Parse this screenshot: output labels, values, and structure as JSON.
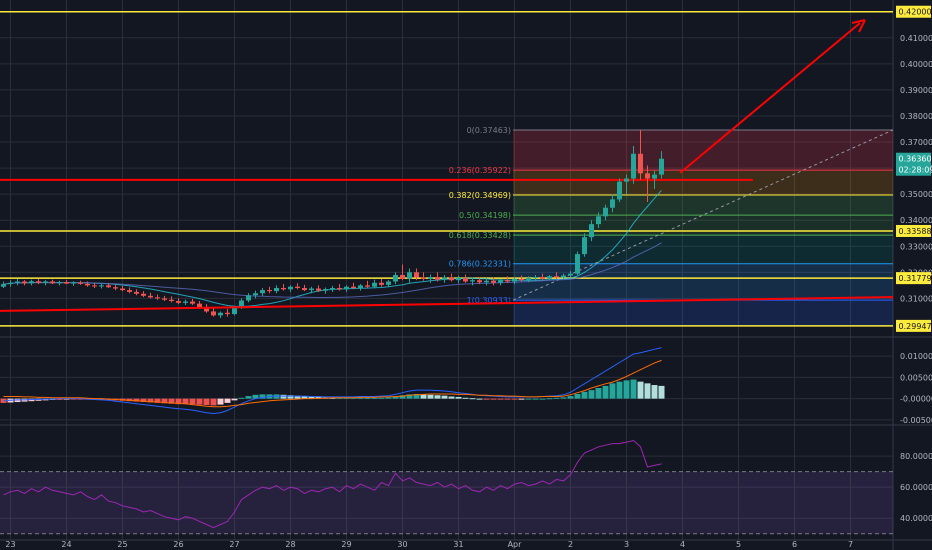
{
  "colors": {
    "background": "#131722",
    "grid": "#2a2e39",
    "up": "#26a69a",
    "down": "#ef5350",
    "yellow": "#ffeb3b",
    "red": "#ff0000",
    "macd_line": "#2962ff",
    "signal_line": "#ff6d00",
    "rsi": "#9c27b0"
  },
  "chart_data": [
    {
      "type": "candlestick",
      "price_axis": {
        "ticks": [
          "0.41000",
          "0.40000",
          "0.39000",
          "0.38000",
          "0.37000",
          "0.36000",
          "0.35000",
          "0.34000",
          "0.33000",
          "0.32000",
          "0.31000"
        ],
        "tick_values": [
          0.41,
          0.4,
          0.39,
          0.38,
          0.37,
          0.36,
          0.35,
          0.34,
          0.33,
          0.32,
          0.31
        ],
        "ylim": [
          0.2952,
          0.4245
        ],
        "current_price": "0.36360",
        "countdown": "02:28:09"
      },
      "time_axis": {
        "labels": [
          "23",
          "24",
          "25",
          "26",
          "27",
          "28",
          "29",
          "30",
          "31",
          "Apr",
          "2",
          "3",
          "4",
          "5",
          "6",
          "7"
        ],
        "label_slots": [
          1,
          9,
          17,
          25,
          33,
          41,
          49,
          57,
          65,
          73,
          81,
          89,
          97,
          105,
          113,
          121
        ],
        "slot_count": 126
      },
      "horizontal_levels": [
        {
          "price": 0.42,
          "label": "0.42000",
          "color": "yellow"
        },
        {
          "price": 0.33588,
          "label": "0.33588",
          "color": "yellow"
        },
        {
          "price": 0.31779,
          "label": "0.31779",
          "color": "yellow"
        },
        {
          "price": 0.29947,
          "label": "0.29947",
          "color": "yellow"
        },
        {
          "price": 0.3555,
          "label": "",
          "color": "red"
        }
      ],
      "fibonacci": [
        {
          "label": "0(0.37463)",
          "price": 0.37463,
          "color": "#787b86"
        },
        {
          "label": "0.236(0.35922)",
          "price": 0.35922,
          "color": "#f23645"
        },
        {
          "label": "0.382(0.34969)",
          "price": 0.34969,
          "color": "#ffeb3b"
        },
        {
          "label": "0.5(0.34198)",
          "price": 0.34198,
          "color": "#4caf50"
        },
        {
          "label": "0.618(0.33428)",
          "price": 0.33428,
          "color": "#4caf50"
        },
        {
          "label": "0.786(0.32331)",
          "price": 0.32331,
          "color": "#2196f3"
        },
        {
          "label": "1(0.30933)",
          "price": 0.30933,
          "color": "#2962ff"
        }
      ],
      "candles": [
        [
          0.3145,
          0.3165,
          0.314,
          0.3155
        ],
        [
          0.3155,
          0.317,
          0.3145,
          0.316
        ],
        [
          0.316,
          0.3175,
          0.315,
          0.3165
        ],
        [
          0.3165,
          0.317,
          0.315,
          0.3158
        ],
        [
          0.3158,
          0.3172,
          0.315,
          0.3166
        ],
        [
          0.3166,
          0.3175,
          0.3155,
          0.316
        ],
        [
          0.316,
          0.317,
          0.315,
          0.3165
        ],
        [
          0.3165,
          0.3172,
          0.3155,
          0.3158
        ],
        [
          0.3158,
          0.3168,
          0.315,
          0.3163
        ],
        [
          0.3163,
          0.317,
          0.3155,
          0.3157
        ],
        [
          0.3157,
          0.3166,
          0.3148,
          0.3161
        ],
        [
          0.3161,
          0.3168,
          0.3152,
          0.3156
        ],
        [
          0.3156,
          0.3165,
          0.3145,
          0.315
        ],
        [
          0.315,
          0.316,
          0.314,
          0.3146
        ],
        [
          0.3146,
          0.3156,
          0.3138,
          0.315
        ],
        [
          0.315,
          0.3158,
          0.314,
          0.3143
        ],
        [
          0.3143,
          0.3152,
          0.3132,
          0.3138
        ],
        [
          0.3138,
          0.3148,
          0.3128,
          0.3132
        ],
        [
          0.3132,
          0.3142,
          0.312,
          0.3125
        ],
        [
          0.3125,
          0.3135,
          0.3112,
          0.3118
        ],
        [
          0.3118,
          0.3128,
          0.3105,
          0.311
        ],
        [
          0.311,
          0.3122,
          0.31,
          0.3104
        ],
        [
          0.3104,
          0.3115,
          0.3095,
          0.31
        ],
        [
          0.31,
          0.311,
          0.309,
          0.3095
        ],
        [
          0.3095,
          0.3108,
          0.3085,
          0.309
        ],
        [
          0.309,
          0.31,
          0.3078,
          0.3083
        ],
        [
          0.3083,
          0.3095,
          0.3075,
          0.3088
        ],
        [
          0.3088,
          0.3098,
          0.3075,
          0.308
        ],
        [
          0.308,
          0.309,
          0.306,
          0.3065
        ],
        [
          0.3065,
          0.3078,
          0.3045,
          0.305
        ],
        [
          0.305,
          0.3062,
          0.303,
          0.3035
        ],
        [
          0.3035,
          0.305,
          0.3025,
          0.3045
        ],
        [
          0.3045,
          0.306,
          0.303,
          0.304
        ],
        [
          0.304,
          0.307,
          0.3035,
          0.3065
        ],
        [
          0.3065,
          0.31,
          0.306,
          0.3092
        ],
        [
          0.3092,
          0.312,
          0.3085,
          0.3112
        ],
        [
          0.3112,
          0.313,
          0.31,
          0.312
        ],
        [
          0.312,
          0.314,
          0.311,
          0.3132
        ],
        [
          0.3132,
          0.3145,
          0.312,
          0.3128
        ],
        [
          0.3128,
          0.315,
          0.312,
          0.314
        ],
        [
          0.314,
          0.3155,
          0.313,
          0.3135
        ],
        [
          0.3135,
          0.315,
          0.3125,
          0.3145
        ],
        [
          0.3145,
          0.3158,
          0.3135,
          0.314
        ],
        [
          0.314,
          0.3152,
          0.3128,
          0.3132
        ],
        [
          0.3132,
          0.3145,
          0.312,
          0.3138
        ],
        [
          0.3138,
          0.315,
          0.3125,
          0.313
        ],
        [
          0.313,
          0.3142,
          0.3118,
          0.3136
        ],
        [
          0.3136,
          0.3148,
          0.3125,
          0.314
        ],
        [
          0.314,
          0.3155,
          0.313,
          0.3135
        ],
        [
          0.3135,
          0.315,
          0.3125,
          0.3145
        ],
        [
          0.3145,
          0.316,
          0.3135,
          0.314
        ],
        [
          0.314,
          0.3155,
          0.313,
          0.315
        ],
        [
          0.315,
          0.3168,
          0.314,
          0.3145
        ],
        [
          0.3145,
          0.3172,
          0.3138,
          0.316
        ],
        [
          0.316,
          0.3175,
          0.3145,
          0.3152
        ],
        [
          0.3152,
          0.317,
          0.3145,
          0.3165
        ],
        [
          0.3165,
          0.32,
          0.3155,
          0.319
        ],
        [
          0.319,
          0.323,
          0.317,
          0.3175
        ],
        [
          0.3175,
          0.3215,
          0.316,
          0.32
        ],
        [
          0.32,
          0.3215,
          0.317,
          0.318
        ],
        [
          0.318,
          0.32,
          0.3168,
          0.3175
        ],
        [
          0.3175,
          0.3192,
          0.316,
          0.3182
        ],
        [
          0.3182,
          0.32,
          0.3165,
          0.3172
        ],
        [
          0.3172,
          0.319,
          0.316,
          0.318
        ],
        [
          0.318,
          0.3195,
          0.3165,
          0.317
        ],
        [
          0.317,
          0.3188,
          0.3158,
          0.3178
        ],
        [
          0.3178,
          0.3192,
          0.316,
          0.3165
        ],
        [
          0.3165,
          0.318,
          0.315,
          0.317
        ],
        [
          0.317,
          0.3182,
          0.3155,
          0.3162
        ],
        [
          0.3162,
          0.3178,
          0.315,
          0.3168
        ],
        [
          0.3168,
          0.318,
          0.315,
          0.316
        ],
        [
          0.316,
          0.3175,
          0.315,
          0.317
        ],
        [
          0.317,
          0.3185,
          0.316,
          0.3165
        ],
        [
          0.3165,
          0.318,
          0.3155,
          0.3175
        ],
        [
          0.3175,
          0.3188,
          0.3165,
          0.317
        ],
        [
          0.317,
          0.3185,
          0.3162,
          0.3178
        ],
        [
          0.3178,
          0.319,
          0.3168,
          0.3182
        ],
        [
          0.3182,
          0.3195,
          0.317,
          0.3176
        ],
        [
          0.3176,
          0.319,
          0.317,
          0.3185
        ],
        [
          0.3185,
          0.32,
          0.3175,
          0.318
        ],
        [
          0.318,
          0.3195,
          0.3175,
          0.3188
        ],
        [
          0.3188,
          0.3205,
          0.318,
          0.3195
        ],
        [
          0.3195,
          0.328,
          0.319,
          0.327
        ],
        [
          0.327,
          0.335,
          0.326,
          0.3335
        ],
        [
          0.3335,
          0.34,
          0.332,
          0.3385
        ],
        [
          0.3385,
          0.343,
          0.337,
          0.3415
        ],
        [
          0.3415,
          0.346,
          0.34,
          0.3448
        ],
        [
          0.3448,
          0.35,
          0.343,
          0.348
        ],
        [
          0.348,
          0.356,
          0.347,
          0.3548
        ],
        [
          0.3548,
          0.3575,
          0.35,
          0.356
        ],
        [
          0.356,
          0.3685,
          0.354,
          0.3655
        ],
        [
          0.3655,
          0.3746,
          0.3555,
          0.358
        ],
        [
          0.358,
          0.361,
          0.347,
          0.356
        ],
        [
          0.356,
          0.359,
          0.352,
          0.3575
        ],
        [
          0.3575,
          0.3665,
          0.356,
          0.3636
        ]
      ],
      "macd": {
        "ticks": [
          "0.01000",
          "0.00500",
          "-0.00000",
          "-0.00500"
        ],
        "tick_values": [
          0.01,
          0.005,
          0,
          -0.005
        ],
        "ylim": [
          -0.0062,
          0.0145
        ],
        "histogram": [
          -0.001,
          -0.0009,
          -0.0008,
          -0.0007,
          -0.0006,
          -0.0005,
          -0.0004,
          -0.0003,
          -0.0003,
          -0.0002,
          -0.0002,
          -0.0002,
          -0.0002,
          -0.0002,
          -0.0003,
          -0.0003,
          -0.0004,
          -0.0005,
          -0.0006,
          -0.0007,
          -0.0008,
          -0.0009,
          -0.001,
          -0.0011,
          -0.0012,
          -0.0013,
          -0.0013,
          -0.0013,
          -0.0014,
          -0.0015,
          -0.0016,
          -0.0014,
          -0.001,
          -0.0004,
          0.0002,
          0.0006,
          0.0009,
          0.001,
          0.001,
          0.001,
          0.0009,
          0.0008,
          0.0007,
          0.0006,
          0.0005,
          0.0004,
          0.0003,
          0.0002,
          0.0002,
          0.0002,
          0.0002,
          0.0002,
          0.0002,
          0.0002,
          0.0002,
          0.0003,
          0.0005,
          0.0008,
          0.001,
          0.0011,
          0.001,
          0.0009,
          0.0008,
          0.0007,
          0.0005,
          0.0004,
          0.0002,
          0.0001,
          0.0,
          -0.0001,
          -0.0001,
          -0.0002,
          -0.0002,
          -0.0002,
          -0.0001,
          0.0,
          0.0,
          0.0,
          0.0001,
          0.0002,
          0.0003,
          0.0006,
          0.0011,
          0.0016,
          0.002,
          0.0025,
          0.003,
          0.0036,
          0.004,
          0.0043,
          0.0045,
          0.004,
          0.0036,
          0.0032,
          0.003
        ],
        "macd_line": [
          -0.0005,
          -0.0004,
          -0.0003,
          -0.0003,
          -0.0002,
          -0.0002,
          -0.0001,
          -0.0001,
          0.0,
          0.0,
          0.0,
          0.0,
          -0.0001,
          -0.0002,
          -0.0003,
          -0.0004,
          -0.0006,
          -0.0008,
          -0.001,
          -0.0012,
          -0.0014,
          -0.0016,
          -0.0018,
          -0.002,
          -0.0022,
          -0.0024,
          -0.0025,
          -0.0027,
          -0.003,
          -0.0033,
          -0.0035,
          -0.0033,
          -0.0028,
          -0.002,
          -0.0012,
          -0.0005,
          0.0,
          0.0003,
          0.0005,
          0.0006,
          0.0006,
          0.0006,
          0.0006,
          0.0006,
          0.0005,
          0.0005,
          0.0004,
          0.0004,
          0.0004,
          0.0004,
          0.0004,
          0.0005,
          0.0005,
          0.0005,
          0.0006,
          0.0007,
          0.001,
          0.0014,
          0.0018,
          0.002,
          0.002,
          0.002,
          0.0019,
          0.0018,
          0.0016,
          0.0014,
          0.0012,
          0.001,
          0.0008,
          0.0007,
          0.0006,
          0.0005,
          0.0004,
          0.0004,
          0.0004,
          0.0004,
          0.0004,
          0.0005,
          0.0006,
          0.0007,
          0.0009,
          0.0015,
          0.0025,
          0.0035,
          0.0045,
          0.0055,
          0.0065,
          0.0075,
          0.0085,
          0.0095,
          0.0105,
          0.0108,
          0.0112,
          0.0116,
          0.012
        ],
        "signal_line": [
          0.0005,
          0.0005,
          0.0005,
          0.0004,
          0.0004,
          0.0003,
          0.0003,
          0.0002,
          0.0002,
          0.0002,
          0.0002,
          0.0002,
          0.0001,
          0.0,
          0.0,
          -0.0001,
          -0.0002,
          -0.0003,
          -0.0004,
          -0.0005,
          -0.0006,
          -0.0007,
          -0.0008,
          -0.0009,
          -0.001,
          -0.0011,
          -0.0012,
          -0.0014,
          -0.0016,
          -0.0018,
          -0.0019,
          -0.0019,
          -0.0018,
          -0.0016,
          -0.0014,
          -0.0011,
          -0.0009,
          -0.0007,
          -0.0005,
          -0.0004,
          -0.0003,
          -0.0002,
          -0.0001,
          0.0,
          0.0,
          0.0001,
          0.0001,
          0.0002,
          0.0002,
          0.0002,
          0.0002,
          0.0003,
          0.0003,
          0.0003,
          0.0004,
          0.0004,
          0.0005,
          0.0006,
          0.0008,
          0.0009,
          0.001,
          0.0011,
          0.0011,
          0.0011,
          0.0011,
          0.001,
          0.001,
          0.0009,
          0.0008,
          0.0008,
          0.0007,
          0.0007,
          0.0006,
          0.0006,
          0.0005,
          0.0004,
          0.0004,
          0.0005,
          0.0005,
          0.0005,
          0.0006,
          0.0009,
          0.0014,
          0.0019,
          0.0025,
          0.003,
          0.0035,
          0.0039,
          0.0045,
          0.0052,
          0.006,
          0.0068,
          0.0076,
          0.0084,
          0.009
        ]
      },
      "rsi": {
        "ticks": [
          "80.0000",
          "60.0000",
          "40.0000"
        ],
        "tick_values": [
          80,
          60,
          40
        ],
        "ylim": [
          26,
          100
        ],
        "band": [
          30,
          70
        ],
        "values": [
          55,
          57,
          58,
          56,
          59,
          57,
          60,
          58,
          57,
          56,
          55,
          57,
          54,
          52,
          55,
          51,
          50,
          48,
          47,
          46,
          44,
          45,
          43,
          41,
          40,
          39,
          41,
          40,
          38,
          36,
          34,
          36,
          38,
          44,
          52,
          55,
          58,
          60,
          59,
          61,
          58,
          60,
          59,
          56,
          58,
          57,
          59,
          60,
          57,
          61,
          59,
          62,
          60,
          58,
          63,
          61,
          69,
          64,
          66,
          63,
          62,
          61,
          63,
          60,
          62,
          59,
          61,
          58,
          57,
          60,
          58,
          61,
          59,
          62,
          63,
          61,
          62,
          64,
          62,
          65,
          64,
          68,
          76,
          82,
          84,
          86,
          87,
          88,
          88,
          89,
          90,
          86,
          73,
          74,
          75
        ]
      }
    }
  ]
}
